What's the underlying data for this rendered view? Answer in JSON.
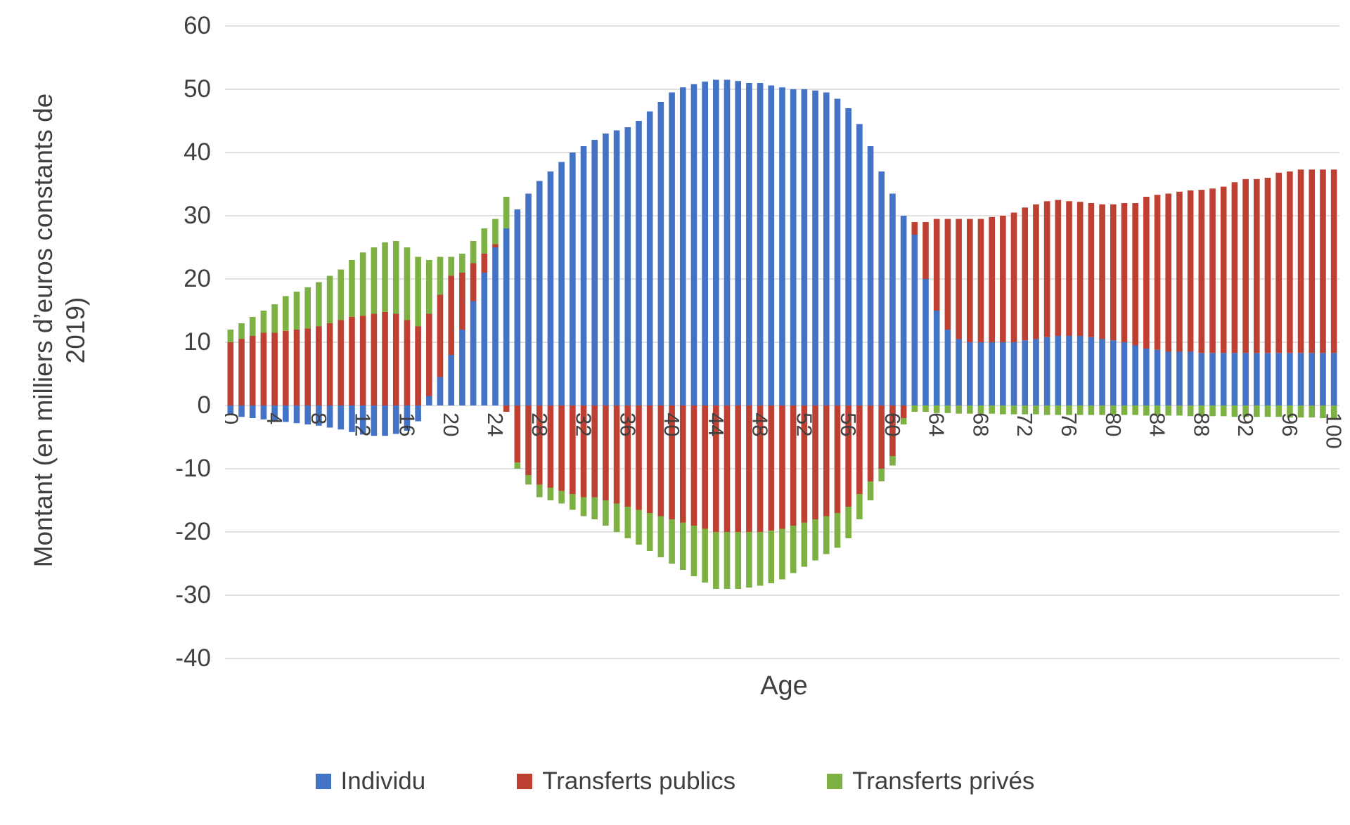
{
  "labels": {
    "ylabel_line1": "Montant (en milliers d’euros constants de",
    "ylabel_line2": "2019)",
    "xlabel": "Age"
  },
  "colors": {
    "grid": "#d9d9d9",
    "axis_text": "#404040",
    "individu": "#4472C4",
    "transferts_publics": "#BE4033",
    "transferts_prives": "#7DB144"
  },
  "chart_data": {
    "type": "bar",
    "stacked": true,
    "title": "",
    "xlabel": "Age",
    "ylabel": "Montant (en milliers d'euros constants de 2019)",
    "ylim": [
      -40,
      60
    ],
    "ytick_step": 10,
    "xtick_step": 4,
    "grid": true,
    "legend_position": "bottom",
    "x": [
      0,
      1,
      2,
      3,
      4,
      5,
      6,
      7,
      8,
      9,
      10,
      11,
      12,
      13,
      14,
      15,
      16,
      17,
      18,
      19,
      20,
      21,
      22,
      23,
      24,
      25,
      26,
      27,
      28,
      29,
      30,
      31,
      32,
      33,
      34,
      35,
      36,
      37,
      38,
      39,
      40,
      41,
      42,
      43,
      44,
      45,
      46,
      47,
      48,
      49,
      50,
      51,
      52,
      53,
      54,
      55,
      56,
      57,
      58,
      59,
      60,
      61,
      62,
      63,
      64,
      65,
      66,
      67,
      68,
      69,
      70,
      71,
      72,
      73,
      74,
      75,
      76,
      77,
      78,
      79,
      80,
      81,
      82,
      83,
      84,
      85,
      86,
      87,
      88,
      89,
      90,
      91,
      92,
      93,
      94,
      95,
      96,
      97,
      98,
      99,
      100
    ],
    "series": [
      {
        "name": "Individu",
        "color": "#4472C4",
        "values": [
          -1.5,
          -1.8,
          -2.0,
          -2.2,
          -2.4,
          -2.6,
          -2.8,
          -3.0,
          -3.2,
          -3.5,
          -3.8,
          -4.2,
          -4.6,
          -4.8,
          -4.8,
          -4.5,
          -4.0,
          -2.5,
          1.5,
          4.5,
          8.0,
          12.0,
          16.5,
          21.0,
          25.0,
          28.0,
          31.0,
          33.5,
          35.5,
          37.0,
          38.5,
          40.0,
          41.0,
          42.0,
          43.0,
          43.5,
          44.0,
          45.0,
          46.5,
          48.0,
          49.5,
          50.3,
          50.8,
          51.2,
          51.5,
          51.5,
          51.3,
          51.0,
          51.0,
          50.6,
          50.3,
          50.0,
          50.0,
          49.8,
          49.5,
          48.5,
          47.0,
          44.5,
          41.0,
          37.0,
          33.5,
          30.0,
          27.0,
          20.0,
          15.0,
          12.0,
          10.5,
          10.0,
          10.0,
          10.0,
          10.0,
          10.0,
          10.3,
          10.5,
          10.8,
          11.0,
          11.0,
          11.0,
          10.8,
          10.5,
          10.3,
          10.0,
          9.5,
          9.0,
          8.8,
          8.5,
          8.5,
          8.5,
          8.3,
          8.3,
          8.3,
          8.3,
          8.3,
          8.3,
          8.3,
          8.3,
          8.3,
          8.3,
          8.3,
          8.3,
          8.3
        ]
      },
      {
        "name": "Transferts publics",
        "color": "#BE4033",
        "values": [
          10.0,
          10.5,
          11.0,
          11.5,
          11.5,
          11.8,
          12.0,
          12.2,
          12.5,
          13.0,
          13.5,
          14.0,
          14.2,
          14.5,
          14.8,
          14.5,
          13.5,
          12.5,
          13.0,
          13.0,
          12.5,
          9.0,
          6.0,
          3.0,
          0.5,
          -1.0,
          -9.0,
          -11.0,
          -12.5,
          -13.0,
          -13.5,
          -14.0,
          -14.5,
          -14.5,
          -15.0,
          -15.5,
          -16.0,
          -16.5,
          -17.0,
          -17.5,
          -18.0,
          -18.5,
          -19.0,
          -19.5,
          -20.0,
          -20.0,
          -20.0,
          -20.0,
          -20.0,
          -19.8,
          -19.5,
          -19.0,
          -18.5,
          -18.0,
          -17.5,
          -17.0,
          -16.0,
          -14.0,
          -12.0,
          -10.0,
          -8.0,
          -2.0,
          2.0,
          9.0,
          14.5,
          17.5,
          19.0,
          19.5,
          19.5,
          19.8,
          20.0,
          20.5,
          21.0,
          21.3,
          21.5,
          21.5,
          21.3,
          21.2,
          21.2,
          21.3,
          21.5,
          22.0,
          22.5,
          24.0,
          24.5,
          25.0,
          25.3,
          25.5,
          25.8,
          26.0,
          26.3,
          27.0,
          27.5,
          27.5,
          27.7,
          28.5,
          28.7,
          29.0,
          29.0,
          29.0,
          29.0
        ]
      },
      {
        "name": "Transferts privés",
        "color": "#7DB144",
        "values": [
          2.0,
          2.5,
          3.0,
          3.5,
          4.5,
          5.5,
          6.0,
          6.5,
          7.0,
          7.5,
          8.0,
          9.0,
          10.0,
          10.5,
          11.0,
          11.5,
          11.5,
          11.0,
          8.5,
          6.0,
          3.0,
          3.0,
          3.5,
          4.0,
          4.0,
          5.0,
          -1.0,
          -1.5,
          -2.0,
          -2.0,
          -2.0,
          -2.5,
          -3.0,
          -3.5,
          -4.0,
          -4.5,
          -5.0,
          -5.5,
          -6.0,
          -6.5,
          -7.0,
          -7.5,
          -8.0,
          -8.5,
          -9.0,
          -9.0,
          -9.0,
          -8.8,
          -8.5,
          -8.3,
          -8.0,
          -7.5,
          -7.0,
          -6.5,
          -6.0,
          -5.5,
          -5.0,
          -4.0,
          -3.0,
          -2.0,
          -1.5,
          -1.0,
          -1.0,
          -1.0,
          -1.2,
          -1.2,
          -1.3,
          -1.3,
          -1.3,
          -1.3,
          -1.4,
          -1.4,
          -1.4,
          -1.4,
          -1.5,
          -1.5,
          -1.5,
          -1.5,
          -1.5,
          -1.5,
          -1.5,
          -1.5,
          -1.5,
          -1.6,
          -1.6,
          -1.6,
          -1.6,
          -1.7,
          -1.7,
          -1.7,
          -1.7,
          -1.8,
          -1.8,
          -1.8,
          -1.8,
          -1.8,
          -1.9,
          -1.9,
          -1.9,
          -2.0,
          -2.0
        ]
      }
    ]
  }
}
